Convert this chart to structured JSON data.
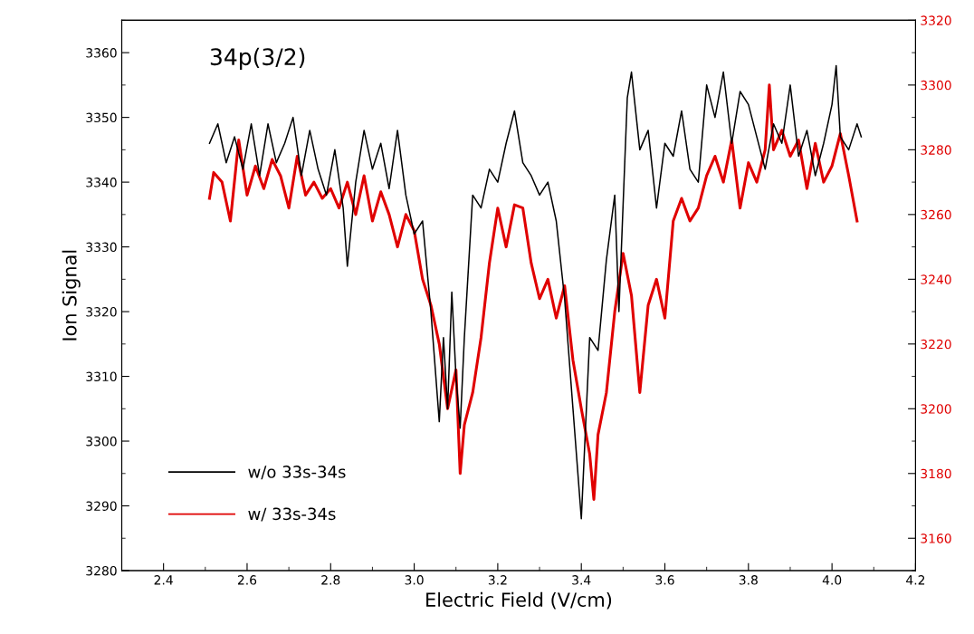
{
  "chart_data": {
    "type": "line",
    "xlabel": "Electric Field (V/cm)",
    "ylabel": "Ion Signal",
    "annotations": [
      "34p(3/2)"
    ],
    "xlim": [
      2.3,
      4.2
    ],
    "xticks": [
      2.4,
      2.6,
      2.8,
      {
        "value": 3,
        "label": "3.0"
      },
      3.2,
      3.4,
      3.6,
      3.8,
      {
        "value": 4,
        "label": "4.0"
      },
      4.2
    ],
    "ylim": [
      3280,
      3365
    ],
    "yticks": [
      3280,
      3290,
      3300,
      3310,
      3320,
      3330,
      3340,
      3350,
      3360
    ],
    "y2lim": [
      3150,
      3320
    ],
    "y2ticks": [
      3160,
      3180,
      3200,
      3220,
      3240,
      3260,
      3280,
      3300,
      3320
    ],
    "legend": "bottom left",
    "grid": false,
    "series": [
      {
        "name": "w/o 33s-34s",
        "color": "#000000",
        "x": [
          2.51,
          2.53,
          2.55,
          2.57,
          2.59,
          2.61,
          2.63,
          2.65,
          2.67,
          2.69,
          2.71,
          2.73,
          2.75,
          2.77,
          2.79,
          2.81,
          2.83,
          2.84,
          2.86,
          2.88,
          2.9,
          2.92,
          2.94,
          2.96,
          2.98,
          3.0,
          3.02,
          3.04,
          3.06,
          3.07,
          3.08,
          3.09,
          3.1,
          3.11,
          3.12,
          3.14,
          3.16,
          3.18,
          3.2,
          3.22,
          3.24,
          3.26,
          3.28,
          3.3,
          3.32,
          3.34,
          3.36,
          3.38,
          3.4,
          3.41,
          3.42,
          3.44,
          3.46,
          3.48,
          3.49,
          3.51,
          3.52,
          3.54,
          3.56,
          3.58,
          3.6,
          3.62,
          3.64,
          3.66,
          3.68,
          3.7,
          3.72,
          3.74,
          3.76,
          3.78,
          3.8,
          3.82,
          3.84,
          3.86,
          3.88,
          3.9,
          3.92,
          3.94,
          3.96,
          3.98,
          4.0,
          4.01,
          4.02,
          4.04,
          4.06,
          4.07
        ],
        "values": [
          3346,
          3349,
          3343,
          3347,
          3342,
          3349,
          3341,
          3349,
          3343,
          3346,
          3350,
          3341,
          3348,
          3342,
          3338,
          3345,
          3336,
          3327,
          3340,
          3348,
          3342,
          3346,
          3339,
          3348,
          3338,
          3332,
          3334,
          3320,
          3303,
          3316,
          3305,
          3323,
          3310,
          3302,
          3316,
          3338,
          3336,
          3342,
          3340,
          3346,
          3351,
          3343,
          3341,
          3338,
          3340,
          3334,
          3322,
          3305,
          3288,
          3302,
          3316,
          3314,
          3328,
          3338,
          3320,
          3353,
          3357,
          3345,
          3348,
          3336,
          3346,
          3344,
          3351,
          3342,
          3340,
          3355,
          3350,
          3357,
          3346,
          3354,
          3352,
          3347,
          3342,
          3349,
          3346,
          3355,
          3344,
          3348,
          3341,
          3346,
          3352,
          3358,
          3347,
          3345,
          3349,
          3347
        ]
      },
      {
        "name": "w/ 33s-34s",
        "color": "#e00000",
        "axis": "y2",
        "x": [
          2.51,
          2.52,
          2.54,
          2.56,
          2.58,
          2.6,
          2.62,
          2.64,
          2.66,
          2.68,
          2.7,
          2.72,
          2.74,
          2.76,
          2.78,
          2.8,
          2.82,
          2.84,
          2.86,
          2.88,
          2.9,
          2.92,
          2.94,
          2.96,
          2.98,
          3.0,
          3.02,
          3.04,
          3.06,
          3.08,
          3.1,
          3.11,
          3.12,
          3.14,
          3.16,
          3.18,
          3.2,
          3.22,
          3.24,
          3.26,
          3.28,
          3.3,
          3.32,
          3.34,
          3.36,
          3.38,
          3.4,
          3.42,
          3.43,
          3.44,
          3.46,
          3.48,
          3.5,
          3.52,
          3.54,
          3.56,
          3.58,
          3.6,
          3.62,
          3.64,
          3.66,
          3.68,
          3.7,
          3.72,
          3.74,
          3.76,
          3.78,
          3.8,
          3.82,
          3.84,
          3.85,
          3.86,
          3.88,
          3.9,
          3.92,
          3.94,
          3.96,
          3.98,
          4.0,
          4.02,
          4.04,
          4.06
        ],
        "values": [
          3265,
          3273,
          3270,
          3258,
          3283,
          3266,
          3275,
          3268,
          3277,
          3272,
          3262,
          3278,
          3266,
          3270,
          3265,
          3268,
          3262,
          3270,
          3260,
          3272,
          3258,
          3267,
          3260,
          3250,
          3260,
          3255,
          3240,
          3232,
          3220,
          3200,
          3212,
          3180,
          3195,
          3205,
          3222,
          3245,
          3262,
          3250,
          3263,
          3262,
          3245,
          3234,
          3240,
          3228,
          3238,
          3215,
          3200,
          3186,
          3172,
          3192,
          3205,
          3230,
          3248,
          3235,
          3205,
          3232,
          3240,
          3228,
          3258,
          3265,
          3258,
          3262,
          3272,
          3278,
          3270,
          3283,
          3262,
          3276,
          3270,
          3280,
          3300,
          3280,
          3286,
          3278,
          3283,
          3268,
          3282,
          3270,
          3275,
          3285,
          3272,
          3258
        ]
      }
    ]
  }
}
